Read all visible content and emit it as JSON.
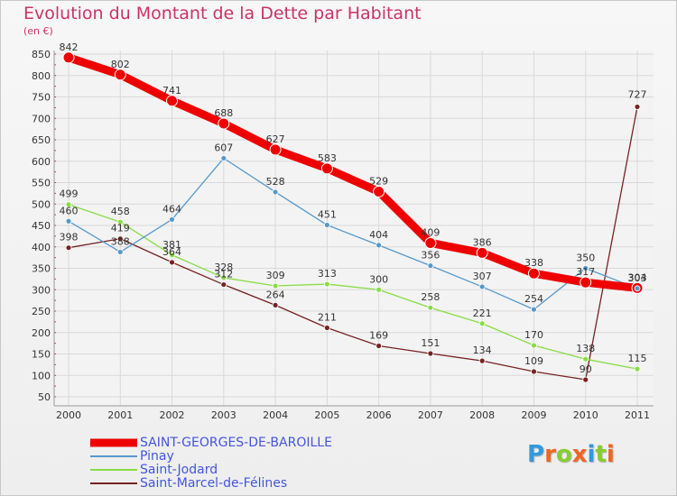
{
  "chart_data": {
    "type": "line",
    "title": "Evolution du Montant de la Dette par Habitant",
    "unit_label": "(en €)",
    "x": [
      "2000",
      "2001",
      "2002",
      "2003",
      "2004",
      "2005",
      "2006",
      "2007",
      "2008",
      "2009",
      "2010",
      "2011"
    ],
    "ylim": [
      50,
      850
    ],
    "yticks": [
      50,
      100,
      150,
      200,
      250,
      300,
      350,
      400,
      450,
      500,
      550,
      600,
      650,
      700,
      750,
      800,
      850
    ],
    "grid": true,
    "legend_position": "bottom-left",
    "series": [
      {
        "name": "SAINT-GEORGES-DE-BAROILLE",
        "color": "#ee0000",
        "width": 9,
        "values": [
          842,
          802,
          741,
          688,
          627,
          583,
          529,
          409,
          386,
          338,
          317,
          304
        ]
      },
      {
        "name": "Pinay",
        "color": "#5599cc",
        "width": 1.3,
        "values": [
          460,
          388,
          464,
          607,
          528,
          451,
          404,
          356,
          307,
          254,
          350,
          303
        ]
      },
      {
        "name": "Saint-Jodard",
        "color": "#88dd44",
        "width": 1.3,
        "values": [
          499,
          458,
          381,
          328,
          309,
          313,
          300,
          258,
          221,
          170,
          138,
          115
        ]
      },
      {
        "name": "Saint-Marcel-de-Félines",
        "color": "#772222",
        "width": 1.3,
        "values": [
          398,
          419,
          364,
          312,
          264,
          211,
          169,
          151,
          134,
          109,
          90,
          727
        ]
      }
    ]
  },
  "logo_text": "Proxiti",
  "logo_colors": [
    "#3399dd",
    "#ee6622",
    "#88cc33",
    "#ee6622",
    "#3399dd",
    "#88cc33",
    "#ee6622"
  ]
}
